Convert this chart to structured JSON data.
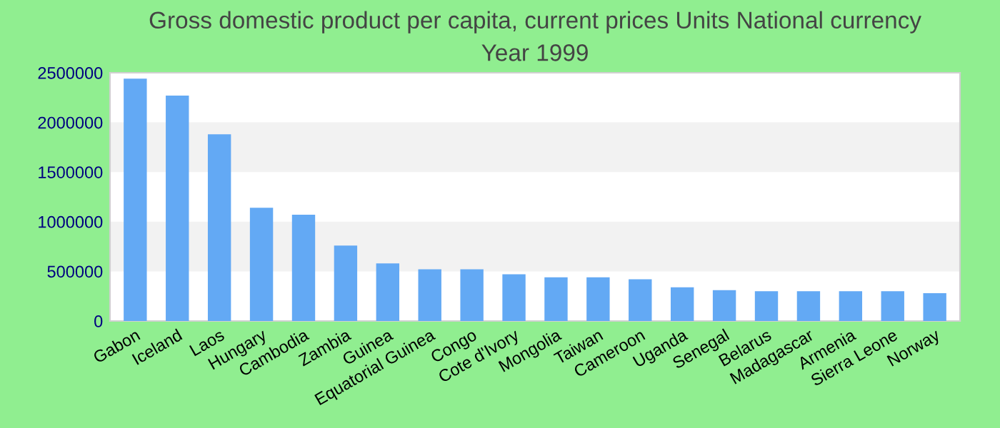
{
  "chart_data": {
    "type": "bar",
    "title": "Gross domestic product per capita, current prices Units National currency\nYear 1999",
    "categories": [
      "Gabon",
      "Iceland",
      "Laos",
      "Hungary",
      "Cambodia",
      "Zambia",
      "Guinea",
      "Equatorial Guinea",
      "Congo",
      "Cote d'Ivory",
      "Mongolia",
      "Taiwan",
      "Cameroon",
      "Uganda",
      "Senegal",
      "Belarus",
      "Madagascar",
      "Armenia",
      "Sierra Leone",
      "Norway"
    ],
    "values": [
      2440000,
      2270000,
      1880000,
      1140000,
      1070000,
      760000,
      580000,
      520000,
      520000,
      470000,
      440000,
      440000,
      420000,
      340000,
      310000,
      300000,
      300000,
      300000,
      300000,
      280000
    ],
    "color": "#63a9f4",
    "ylim": [
      0,
      2500000
    ],
    "yticks": [
      0,
      500000,
      1000000,
      1500000,
      2000000,
      2500000
    ],
    "bands": [
      {
        "axis": "y",
        "from": 500000,
        "to": 1000000,
        "color": "#f2f2f2"
      },
      {
        "axis": "y",
        "from": 1500000,
        "to": 2000000,
        "color": "#f2f2f2"
      }
    ]
  }
}
